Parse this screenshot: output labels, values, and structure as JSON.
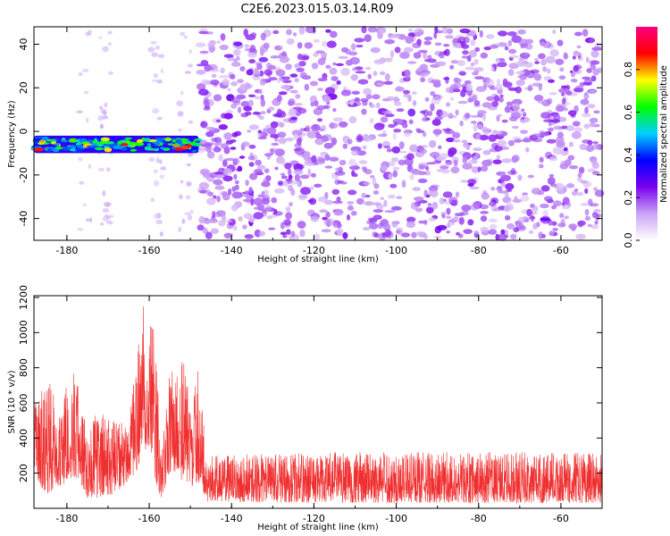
{
  "title": "C2E6.2023.015.03.14.R09",
  "chart_data": [
    {
      "type": "heatmap",
      "xlabel": "Height of straight line (km)",
      "ylabel": "Frequency (Hz)",
      "xlim": [
        -188,
        -50
      ],
      "ylim": [
        -50,
        48
      ],
      "x_ticks": [
        -180,
        -160,
        -140,
        -120,
        -100,
        -80,
        -60
      ],
      "y_ticks": [
        -40,
        -20,
        0,
        20,
        40
      ],
      "colorbar": {
        "label": "Normalized spectral amplitude",
        "range": [
          0.0,
          1.0
        ],
        "ticks": [
          0.0,
          0.2,
          0.4,
          0.6,
          0.8
        ],
        "colormap": [
          "#ffffff",
          "#c9a3f5",
          "#7a00f0",
          "#0000ff",
          "#00d0ff",
          "#00ff00",
          "#ffff00",
          "#ff0000",
          "#ff0080"
        ]
      },
      "features": [
        {
          "name": "narrow band signal",
          "x_range": [
            -188,
            -148
          ],
          "frequency_center": -6,
          "frequency_width": 8,
          "peak_amplitude": 0.9
        },
        {
          "name": "broadband noise",
          "x_range": [
            -148,
            -50
          ],
          "frequency_range": [
            -50,
            48
          ],
          "typical_amplitude": 0.25
        }
      ]
    },
    {
      "type": "line",
      "xlabel": "Height of straight line (km)",
      "ylabel": "SNR (10 * v/v)",
      "xlim": [
        -188,
        -50
      ],
      "ylim": [
        0,
        1210
      ],
      "x_ticks": [
        -180,
        -160,
        -140,
        -120,
        -100,
        -80,
        -60
      ],
      "y_ticks": [
        200,
        400,
        600,
        800,
        1000,
        1200
      ],
      "color": "#f03030",
      "envelope": [
        {
          "x": -188,
          "low": 150,
          "high": 580
        },
        {
          "x": -185,
          "low": 80,
          "high": 760
        },
        {
          "x": -182,
          "low": 120,
          "high": 620
        },
        {
          "x": -178,
          "low": 180,
          "high": 790
        },
        {
          "x": -175,
          "low": 60,
          "high": 470
        },
        {
          "x": -172,
          "low": 60,
          "high": 560
        },
        {
          "x": -168,
          "low": 80,
          "high": 500
        },
        {
          "x": -165,
          "low": 150,
          "high": 480
        },
        {
          "x": -163,
          "low": 200,
          "high": 850
        },
        {
          "x": -162,
          "low": 300,
          "high": 1200
        },
        {
          "x": -160,
          "low": 350,
          "high": 1120
        },
        {
          "x": -159,
          "low": 180,
          "high": 1150
        },
        {
          "x": -157,
          "low": 40,
          "high": 300
        },
        {
          "x": -155,
          "low": 200,
          "high": 800
        },
        {
          "x": -152,
          "low": 150,
          "high": 920
        },
        {
          "x": -150,
          "low": 120,
          "high": 600
        },
        {
          "x": -148,
          "low": 150,
          "high": 800
        },
        {
          "x": -146,
          "low": 40,
          "high": 300
        },
        {
          "x": -120,
          "low": 30,
          "high": 320
        },
        {
          "x": -100,
          "low": 30,
          "high": 320
        },
        {
          "x": -80,
          "low": 30,
          "high": 320
        },
        {
          "x": -50,
          "low": 30,
          "high": 320
        }
      ]
    }
  ]
}
